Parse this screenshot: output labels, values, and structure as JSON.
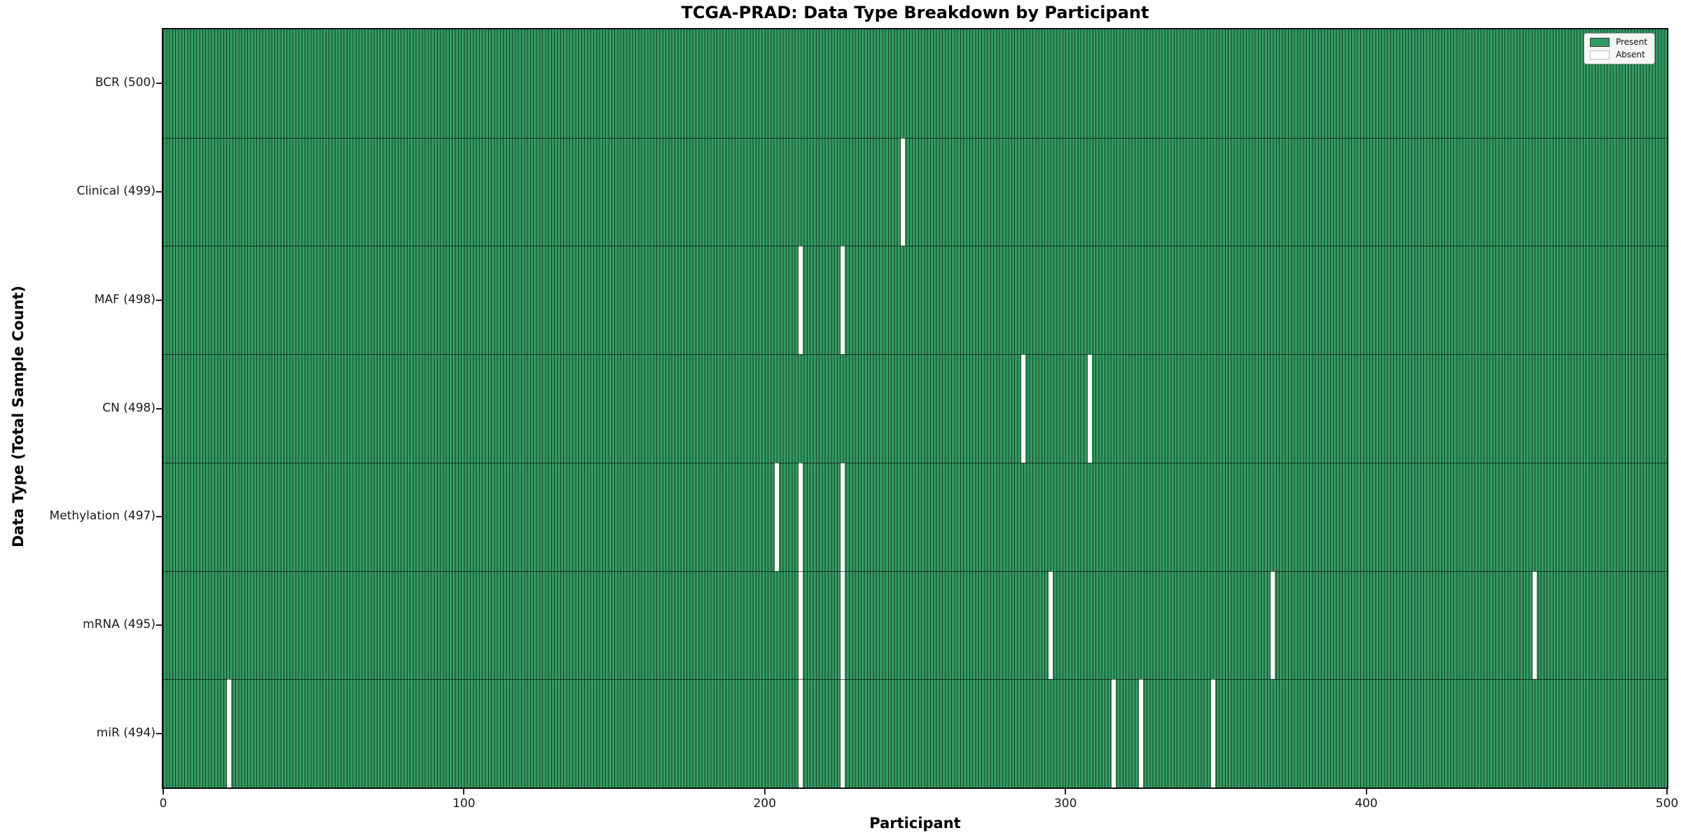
{
  "title": "TCGA-PRAD: Data Type Breakdown by Participant",
  "xlabel": "Participant",
  "ylabel": "Data Type (Total Sample Count)",
  "legend": {
    "present_label": "Present",
    "absent_label": "Absent",
    "position": "upper right"
  },
  "colors": {
    "present_fill": "#339a61",
    "bar_edge": "#17422c",
    "absent": "#ffffff",
    "legend_bg": "#f3f8f3",
    "spine": "#111111"
  },
  "chart_data": {
    "type": "heatmap",
    "title": "TCGA-PRAD: Data Type Breakdown by Participant",
    "xlabel": "Participant",
    "ylabel": "Data Type (Total Sample Count)",
    "x_range": [
      0,
      500
    ],
    "x_ticks": [
      0,
      100,
      200,
      300,
      400,
      500
    ],
    "n_participants": 500,
    "grid": false,
    "legend_entries": [
      "Present",
      "Absent"
    ],
    "rows": [
      {
        "label": "BCR (500)",
        "name": "bcr",
        "total": 500,
        "absent_participants": []
      },
      {
        "label": "Clinical (499)",
        "name": "clinical",
        "total": 499,
        "absent_participants": [
          246
        ]
      },
      {
        "label": "MAF (498)",
        "name": "maf",
        "total": 498,
        "absent_participants": [
          212,
          226
        ]
      },
      {
        "label": "CN (498)",
        "name": "cn",
        "total": 498,
        "absent_participants": [
          286,
          308
        ]
      },
      {
        "label": "Methylation (497)",
        "name": "methylation",
        "total": 497,
        "absent_participants": [
          204,
          212,
          226
        ]
      },
      {
        "label": "mRNA (495)",
        "name": "mrna",
        "total": 495,
        "absent_participants": [
          212,
          226,
          295,
          369,
          456
        ]
      },
      {
        "label": "miR (494)",
        "name": "mir",
        "total": 494,
        "absent_participants": [
          22,
          212,
          226,
          316,
          325,
          349
        ]
      }
    ]
  }
}
